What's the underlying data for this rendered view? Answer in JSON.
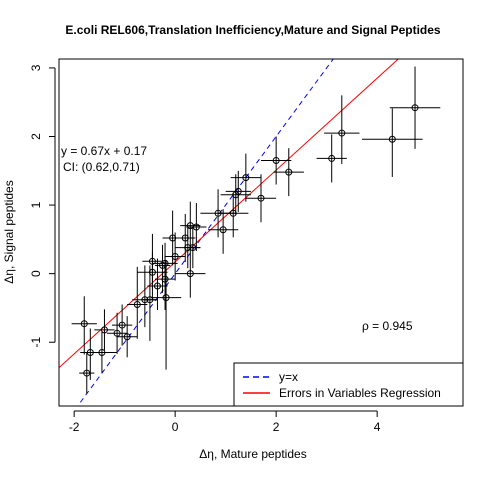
{
  "chart_data": {
    "type": "scatter",
    "title": "E.coli REL606,Translation Inefficiency,Mature and Signal Peptides",
    "xlabel": "Δη, Mature peptides",
    "ylabel": "Δη, Signal peptides",
    "xlim": [
      -2.3,
      5.7
    ],
    "ylim": [
      -1.93,
      3.13
    ],
    "xticks": [
      -2,
      0,
      2,
      4
    ],
    "yticks": [
      -1,
      0,
      1,
      2,
      3
    ],
    "grid": false,
    "annotations": {
      "equation": "y = 0.67x + 0.17",
      "ci": "CI: (0.62,0.71)",
      "rho": "ρ = 0.945"
    },
    "regression": {
      "slope": 0.67,
      "intercept": 0.17,
      "color": "#ff0000"
    },
    "identity_line": {
      "slope": 1,
      "intercept": 0,
      "color": "#0000ff"
    },
    "legend": {
      "position": "bottom-right",
      "entries": [
        {
          "label": "y=x",
          "color": "#0000ff",
          "style": "dashed"
        },
        {
          "label": "Errors in Variables Regression",
          "color": "#ff0000",
          "style": "solid"
        }
      ]
    },
    "points": [
      {
        "x": -1.8,
        "y": -0.73,
        "xerr": 0.25,
        "yerr": [
          0.45,
          0.4
        ]
      },
      {
        "x": -1.75,
        "y": -1.45,
        "xerr": 0.15,
        "yerr": [
          0.3,
          0.3
        ]
      },
      {
        "x": -1.68,
        "y": -1.15,
        "xerr": 0.2,
        "yerr": [
          0.4,
          0.35
        ]
      },
      {
        "x": -1.45,
        "y": -1.15,
        "xerr": 0.3,
        "yerr": [
          0.3,
          0.3
        ]
      },
      {
        "x": -1.4,
        "y": -0.82,
        "xerr": 0.2,
        "yerr": [
          0.3,
          0.3
        ]
      },
      {
        "x": -1.15,
        "y": -0.87,
        "xerr": 0.2,
        "yerr": [
          0.3,
          0.3
        ]
      },
      {
        "x": -1.05,
        "y": -0.75,
        "xerr": 0.2,
        "yerr": [
          0.3,
          0.3
        ]
      },
      {
        "x": -0.95,
        "y": -0.92,
        "xerr": 0.2,
        "yerr": [
          0.3,
          0.3
        ]
      },
      {
        "x": -0.75,
        "y": -0.45,
        "xerr": 0.2,
        "yerr": [
          0.5,
          0.55
        ]
      },
      {
        "x": -0.6,
        "y": -0.38,
        "xerr": 0.25,
        "yerr": [
          0.4,
          0.5
        ]
      },
      {
        "x": -0.5,
        "y": -0.38,
        "xerr": 0.15,
        "yerr": [
          0.6,
          0.5
        ]
      },
      {
        "x": -0.45,
        "y": 0.18,
        "xerr": 0.2,
        "yerr": [
          0.4,
          0.4
        ]
      },
      {
        "x": -0.45,
        "y": 0.02,
        "xerr": 0.3,
        "yerr": [
          0.4,
          0.3
        ]
      },
      {
        "x": -0.35,
        "y": -0.18,
        "xerr": 0.2,
        "yerr": [
          0.35,
          0.4
        ]
      },
      {
        "x": -0.25,
        "y": 0.12,
        "xerr": 0.15,
        "yerr": [
          0.4,
          0.3
        ]
      },
      {
        "x": -0.2,
        "y": 0.15,
        "xerr": 0.25,
        "yerr": [
          0.3,
          0.3
        ]
      },
      {
        "x": -0.2,
        "y": -0.08,
        "xerr": 0.2,
        "yerr": [
          0.45,
          0.35
        ]
      },
      {
        "x": -0.18,
        "y": -0.35,
        "xerr": 0.3,
        "yerr": [
          1.05,
          0.55
        ]
      },
      {
        "x": -0.05,
        "y": 0.52,
        "xerr": 0.2,
        "yerr": [
          0.4,
          0.4
        ]
      },
      {
        "x": 0.0,
        "y": 0.25,
        "xerr": 0.2,
        "yerr": [
          0.35,
          0.35
        ]
      },
      {
        "x": 0.2,
        "y": 0.52,
        "xerr": 0.2,
        "yerr": [
          0.35,
          0.35
        ]
      },
      {
        "x": 0.25,
        "y": 0.38,
        "xerr": 0.25,
        "yerr": [
          0.3,
          0.3
        ]
      },
      {
        "x": 0.3,
        "y": 0.7,
        "xerr": 0.2,
        "yerr": [
          0.35,
          0.35
        ]
      },
      {
        "x": 0.3,
        "y": 0.0,
        "xerr": 0.3,
        "yerr": [
          0.35,
          0.35
        ]
      },
      {
        "x": 0.35,
        "y": 0.38,
        "xerr": 0.15,
        "yerr": [
          0.3,
          0.3
        ]
      },
      {
        "x": 0.42,
        "y": 0.68,
        "xerr": 0.2,
        "yerr": [
          0.35,
          0.35
        ]
      },
      {
        "x": 0.85,
        "y": 0.88,
        "xerr": 0.35,
        "yerr": [
          0.35,
          0.35
        ]
      },
      {
        "x": 0.95,
        "y": 0.64,
        "xerr": 0.3,
        "yerr": [
          0.35,
          0.3
        ]
      },
      {
        "x": 1.15,
        "y": 0.88,
        "xerr": 0.3,
        "yerr": [
          0.35,
          0.3
        ]
      },
      {
        "x": 1.2,
        "y": 1.15,
        "xerr": 0.3,
        "yerr": [
          0.3,
          0.3
        ]
      },
      {
        "x": 1.25,
        "y": 1.2,
        "xerr": 0.25,
        "yerr": [
          0.3,
          0.3
        ]
      },
      {
        "x": 1.4,
        "y": 1.4,
        "xerr": 0.3,
        "yerr": [
          0.35,
          0.35
        ]
      },
      {
        "x": 1.7,
        "y": 1.1,
        "xerr": 0.3,
        "yerr": [
          0.35,
          0.35
        ]
      },
      {
        "x": 2.0,
        "y": 1.65,
        "xerr": 0.3,
        "yerr": [
          0.35,
          0.35
        ]
      },
      {
        "x": 2.25,
        "y": 1.48,
        "xerr": 0.3,
        "yerr": [
          0.35,
          0.35
        ]
      },
      {
        "x": 3.1,
        "y": 1.68,
        "xerr": 0.3,
        "yerr": [
          0.35,
          0.35
        ]
      },
      {
        "x": 3.3,
        "y": 2.05,
        "xerr": 0.35,
        "yerr": [
          0.45,
          0.55
        ]
      },
      {
        "x": 4.3,
        "y": 1.96,
        "xerr": 0.6,
        "yerr": [
          0.55,
          0.45
        ]
      },
      {
        "x": 4.75,
        "y": 2.42,
        "xerr": 0.5,
        "yerr": [
          0.6,
          0.6
        ]
      }
    ]
  }
}
